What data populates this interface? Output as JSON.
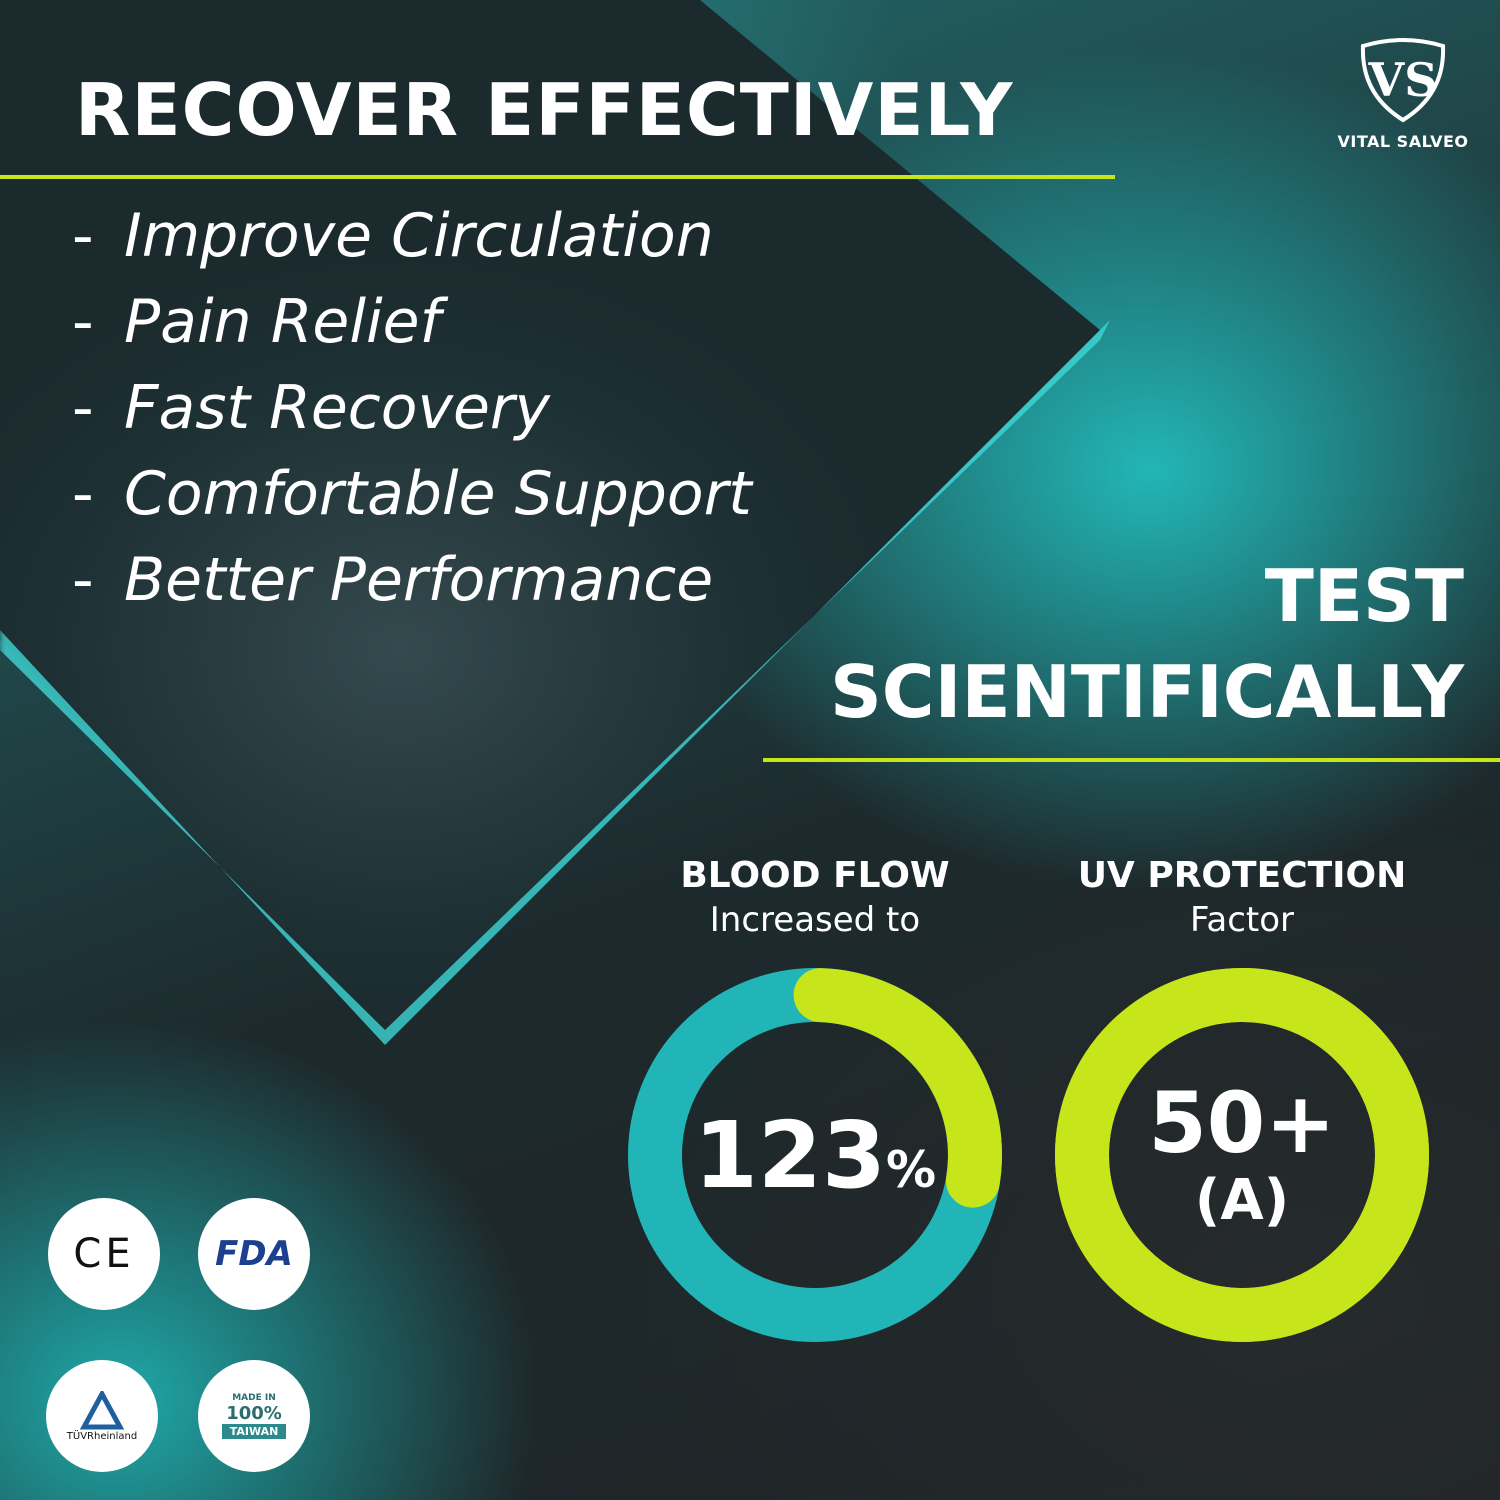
{
  "brand": {
    "name": "VITAL SALVEO",
    "logo_monogram": "VS"
  },
  "headline": "RECOVER EFFECTIVELY",
  "benefits": [
    "Improve Circulation",
    "Pain Relief",
    "Fast Recovery",
    "Comfortable Support",
    "Better Performance"
  ],
  "bullet": "-",
  "test_heading": {
    "line1": "TEST",
    "line2": "SCIENTIFICALLY"
  },
  "stats": [
    {
      "heading": "BLOOD FLOW",
      "subheading": "Increased to",
      "value": "123",
      "unit": "%",
      "fill_fraction": 0.27
    },
    {
      "heading": "UV PROTECTION",
      "subheading": "Factor",
      "value": "50+",
      "grade": "(A)",
      "fill_fraction": 1.0
    }
  ],
  "badges": {
    "ce": "CE",
    "fda": "FDA",
    "tuv": "TÜVRheinland",
    "taiwan_top": "MADE IN",
    "taiwan_mid": "100%",
    "taiwan_bottom": "TAIWAN"
  },
  "colors": {
    "accent": "#c6e51a",
    "teal": "#22b5b8",
    "dark": "#1d2527"
  }
}
